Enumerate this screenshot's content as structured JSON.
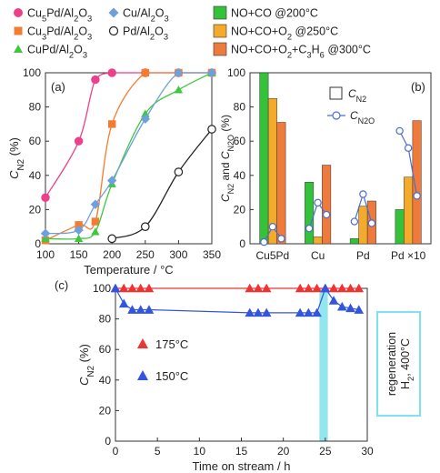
{
  "legend_top": {
    "entries": [
      {
        "label": "Cu5Pd/Al2O3",
        "color": "#ee3f8b",
        "marker": "circle"
      },
      {
        "label": "Cu3Pd/Al2O3",
        "color": "#f47c30",
        "marker": "square"
      },
      {
        "label": "CuPd/Al2O3",
        "color": "#3fc83f",
        "marker": "triangle"
      },
      {
        "label": "Cu/Al2O3",
        "color": "#6fa0dc",
        "marker": "diamond"
      },
      {
        "label": "Pd/Al2O3",
        "color": "#222222",
        "marker": "circle-open"
      },
      {
        "label": "NO+CO @200°C",
        "color": "#33c23a",
        "marker": "box"
      },
      {
        "label": "NO+CO+O2 @250°C",
        "color": "#f4aa2a",
        "marker": "box"
      },
      {
        "label": "NO+CO+O2+C3H6 @300°C",
        "color": "#ee7a3c",
        "marker": "box"
      }
    ]
  },
  "chart_data": [
    {
      "type": "line",
      "panel_label": "(a)",
      "xlabel": "Temperature / °C",
      "ylabel": "CN2 (%)",
      "xlim": [
        100,
        350
      ],
      "ylim": [
        0,
        100
      ],
      "xticks": [
        100,
        150,
        200,
        250,
        300,
        350
      ],
      "yticks": [
        0,
        20,
        40,
        60,
        80,
        100
      ],
      "series": [
        {
          "name": "Cu5Pd/Al2O3",
          "color": "#ee3f8b",
          "marker": "circle",
          "x": [
            100,
            150,
            175,
            200,
            250,
            300,
            350
          ],
          "y": [
            27,
            60,
            96,
            100,
            100,
            100,
            100
          ]
        },
        {
          "name": "Cu3Pd/Al2O3",
          "color": "#f47c30",
          "marker": "square",
          "x": [
            100,
            150,
            175,
            200,
            250,
            300,
            350
          ],
          "y": [
            2,
            11,
            13,
            70,
            100,
            100,
            100
          ]
        },
        {
          "name": "CuPd/Al2O3",
          "color": "#3fc83f",
          "marker": "triangle",
          "x": [
            100,
            150,
            175,
            200,
            250,
            300,
            350
          ],
          "y": [
            3,
            3,
            7,
            35,
            76,
            90,
            100
          ]
        },
        {
          "name": "Cu/Al2O3",
          "color": "#6fa0dc",
          "marker": "diamond",
          "x": [
            100,
            150,
            175,
            200,
            250,
            300,
            350
          ],
          "y": [
            6,
            8,
            23,
            37,
            73,
            100,
            100
          ]
        },
        {
          "name": "Pd/Al2O3",
          "color": "#222222",
          "marker": "circle-open",
          "x": [
            200,
            250,
            300,
            350
          ],
          "y": [
            3,
            10,
            42,
            67
          ]
        }
      ]
    },
    {
      "type": "bar",
      "panel_label": "(b)",
      "ylabel": "CN2 and CN2O (%)",
      "ylim": [
        0,
        100
      ],
      "yticks": [
        0,
        20,
        40,
        60,
        80,
        100
      ],
      "categories": [
        "Cu5Pd",
        "Cu",
        "Pd",
        "Pd ×10"
      ],
      "legend": {
        "bar": "CN2",
        "line": "CN2O"
      },
      "series": [
        {
          "name": "NO+CO @200°C",
          "color": "#33c23a",
          "values": [
            100,
            36,
            3,
            20
          ]
        },
        {
          "name": "NO+CO+O2 @250°C",
          "color": "#f4aa2a",
          "values": [
            85,
            4,
            22,
            39
          ]
        },
        {
          "name": "NO+CO+O2+C3H6 @300°C",
          "color": "#ee7a3c",
          "values": [
            71,
            46,
            25,
            72
          ]
        }
      ],
      "n2o": [
        [
          1,
          10,
          3
        ],
        [
          9,
          24,
          17
        ],
        [
          13,
          29,
          12
        ],
        [
          66,
          56,
          28
        ]
      ]
    },
    {
      "type": "scatter",
      "panel_label": "(c)",
      "xlabel": "Time on stream / h",
      "ylabel": "CN2 (%)",
      "xlim": [
        0,
        30
      ],
      "ylim": [
        0,
        100
      ],
      "xticks": [
        0,
        5,
        10,
        15,
        20,
        25,
        30
      ],
      "yticks": [
        0,
        20,
        40,
        60,
        80,
        100
      ],
      "regeneration_window": [
        24.3,
        25.3
      ],
      "annotation": "regeneration H2, 400°C",
      "series": [
        {
          "name": "175°C",
          "color": "#ee3333",
          "marker": "triangle",
          "x": [
            0,
            1,
            2,
            3,
            4,
            16,
            17,
            18,
            22,
            23,
            24,
            25,
            26,
            27,
            28,
            29
          ],
          "y": [
            100,
            100,
            100,
            100,
            100,
            100,
            100,
            100,
            100,
            100,
            100,
            100,
            100,
            100,
            100,
            100
          ]
        },
        {
          "name": "150°C",
          "color": "#3355dd",
          "marker": "triangle",
          "x": [
            0,
            1,
            2,
            3,
            4,
            16,
            17,
            18,
            22,
            23,
            24,
            25,
            26,
            27,
            28,
            29
          ],
          "y": [
            100,
            90,
            86,
            86,
            86,
            84,
            84,
            84,
            84,
            84,
            84,
            100,
            92,
            88,
            87,
            86
          ]
        }
      ]
    }
  ]
}
